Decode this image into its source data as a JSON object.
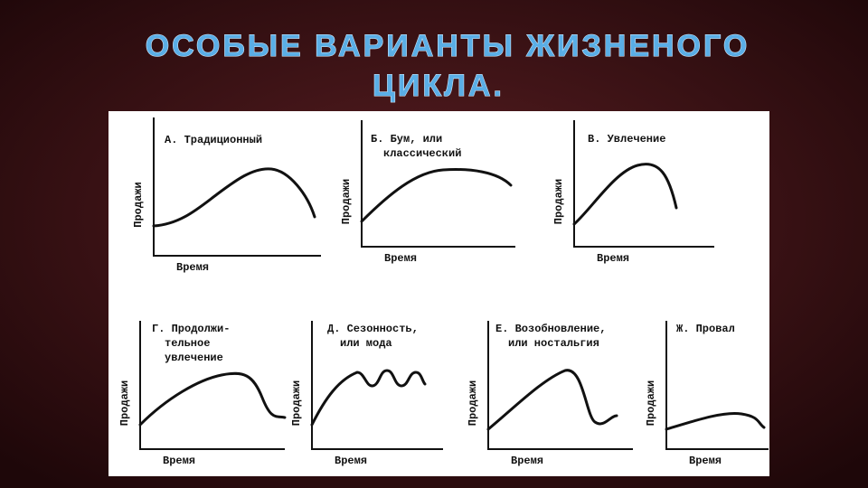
{
  "title": [
    "ОСОБЫЕ ВАРИАНТЫ ЖИЗНЕНОГО",
    "ЦИКЛА."
  ],
  "panels": [
    {
      "label": [
        "А. Традиционный"
      ],
      "y_label": "Продажи",
      "x_label": "Время"
    },
    {
      "label": [
        "Б. Бум, или",
        "классический"
      ],
      "y_label": "Продажи",
      "x_label": "Время"
    },
    {
      "label": [
        "В. Увлечение"
      ],
      "y_label": "Продажи",
      "x_label": "Время"
    },
    {
      "label": [
        "Г. Продолжи-",
        "тельное",
        "увлечение"
      ],
      "y_label": "Продажи",
      "x_label": "Время"
    },
    {
      "label": [
        "Д. Сезонность,",
        "или мода"
      ],
      "y_label": "Продажи",
      "x_label": "Время"
    },
    {
      "label": [
        "Е. Возобновление,",
        "или ностальгия"
      ],
      "y_label": "Продажи",
      "x_label": "Время"
    },
    {
      "label": [
        "Ж. Провал"
      ],
      "y_label": "Продажи",
      "x_label": "Время"
    }
  ]
}
